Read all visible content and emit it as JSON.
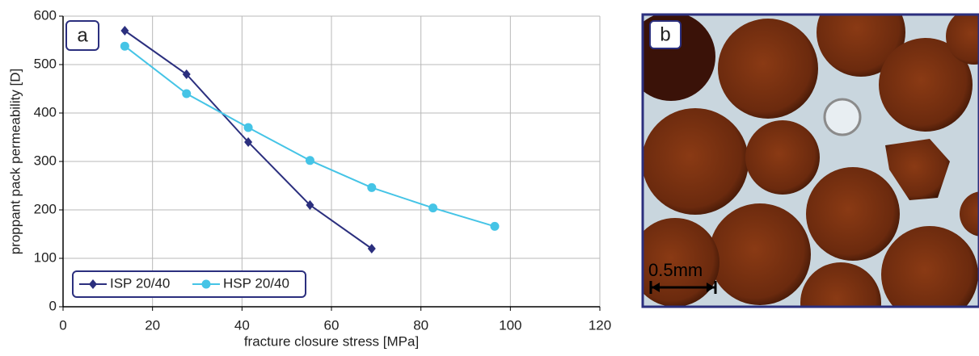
{
  "chart_data": {
    "type": "line",
    "panel_label": "a",
    "x_label": "fracture closure stress [MPa]",
    "y_label": "proppant pack permeability [D]",
    "xlim": [
      0,
      120
    ],
    "xticks": [
      0,
      20,
      40,
      60,
      80,
      100,
      120
    ],
    "ylim": [
      0,
      600
    ],
    "yticks": [
      0,
      100,
      200,
      300,
      400,
      500,
      600
    ],
    "grid": true,
    "legend": "lower left",
    "series": [
      {
        "name": "ISP 20/40",
        "color": "#2b2f7e",
        "marker": "diamond",
        "x": [
          13.8,
          27.6,
          41.4,
          55.2,
          69
        ],
        "values": [
          570,
          480,
          340,
          210,
          120
        ]
      },
      {
        "name": "HSP 20/40",
        "color": "#45c4e6",
        "marker": "circle",
        "x": [
          13.8,
          27.6,
          41.4,
          55.2,
          69,
          82.7,
          96.5
        ],
        "values": [
          538,
          440,
          370,
          302,
          246,
          204,
          166
        ]
      }
    ]
  },
  "image_panel": {
    "panel_label": "b",
    "scale_bar": "0.5mm"
  }
}
